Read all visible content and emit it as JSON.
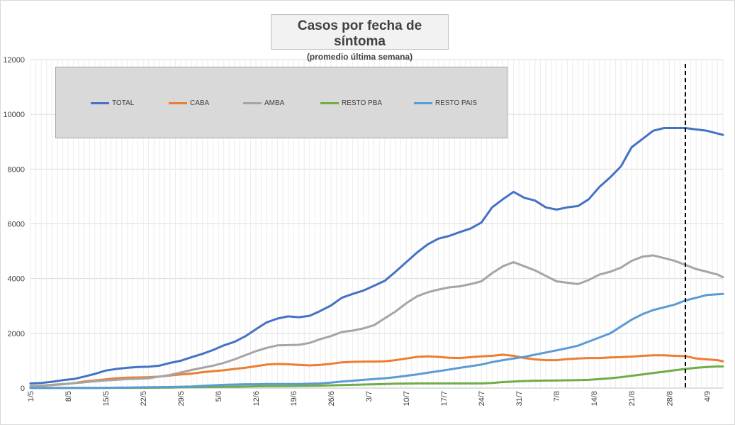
{
  "chart_data": {
    "type": "line",
    "title": "Casos por fecha de síntoma",
    "subtitle": "(promedio última semana)",
    "xlabel": "",
    "ylabel": "",
    "ylim": [
      0,
      12000
    ],
    "yticks": [
      0,
      2000,
      4000,
      6000,
      8000,
      10000,
      12000
    ],
    "grid": true,
    "legend_position": "top-left",
    "x_dates": {
      "first": "1/5",
      "last": "7/9"
    },
    "x_tick_labels": [
      "1/5",
      "8/5",
      "15/5",
      "22/5",
      "29/5",
      "5/6",
      "12/6",
      "19/6",
      "26/6",
      "3/7",
      "10/7",
      "17/7",
      "24/7",
      "31/7",
      "7/8",
      "14/8",
      "21/8",
      "28/8",
      "4/9"
    ],
    "vline": {
      "label": "",
      "x": "31/8",
      "style": "dashed"
    },
    "x": [
      "1/5",
      "3/5",
      "5/5",
      "7/5",
      "9/5",
      "11/5",
      "13/5",
      "15/5",
      "17/5",
      "19/5",
      "21/5",
      "23/5",
      "25/5",
      "27/5",
      "29/5",
      "31/5",
      "2/6",
      "4/6",
      "6/6",
      "8/6",
      "10/6",
      "12/6",
      "14/6",
      "16/6",
      "18/6",
      "20/6",
      "22/6",
      "24/6",
      "26/6",
      "28/6",
      "30/6",
      "2/7",
      "4/7",
      "6/7",
      "8/7",
      "10/7",
      "12/7",
      "14/7",
      "16/7",
      "18/7",
      "20/7",
      "22/7",
      "24/7",
      "26/7",
      "28/7",
      "30/7",
      "1/8",
      "3/8",
      "5/8",
      "7/8",
      "9/8",
      "11/8",
      "13/8",
      "15/8",
      "17/8",
      "19/8",
      "21/8",
      "23/8",
      "25/8",
      "27/8",
      "29/8",
      "31/8",
      "2/9",
      "4/9",
      "6/9",
      "7/9"
    ],
    "series": [
      {
        "name": "TOTAL",
        "color": "#4472c4",
        "values": [
          170,
          190,
          230,
          290,
          330,
          420,
          520,
          640,
          700,
          740,
          770,
          780,
          820,
          920,
          1000,
          1130,
          1250,
          1390,
          1560,
          1690,
          1890,
          2150,
          2400,
          2540,
          2620,
          2590,
          2640,
          2820,
          3020,
          3300,
          3440,
          3560,
          3740,
          3920,
          4250,
          4600,
          4950,
          5250,
          5460,
          5560,
          5700,
          5830,
          6050,
          6600,
          6900,
          7170,
          6950,
          6850,
          6600,
          6520,
          6600,
          6650,
          6900,
          7350,
          7700,
          8100,
          8800,
          9100,
          9400,
          9500,
          9500,
          9500,
          9450,
          9400,
          9300,
          9250
        ]
      },
      {
        "name": "CABA",
        "color": "#ed7d31",
        "values": [
          60,
          80,
          110,
          140,
          180,
          240,
          280,
          320,
          360,
          380,
          390,
          400,
          420,
          460,
          500,
          530,
          580,
          620,
          650,
          700,
          740,
          800,
          860,
          880,
          870,
          850,
          830,
          850,
          890,
          940,
          960,
          970,
          970,
          980,
          1020,
          1080,
          1140,
          1160,
          1140,
          1110,
          1100,
          1130,
          1160,
          1180,
          1220,
          1180,
          1100,
          1050,
          1020,
          1020,
          1060,
          1080,
          1100,
          1100,
          1120,
          1130,
          1150,
          1180,
          1200,
          1200,
          1180,
          1170,
          1080,
          1050,
          1020,
          980
        ]
      },
      {
        "name": "AMBA",
        "color": "#a5a5a5",
        "values": [
          80,
          90,
          120,
          150,
          180,
          210,
          250,
          280,
          300,
          330,
          340,
          360,
          420,
          480,
          570,
          660,
          740,
          820,
          920,
          1050,
          1200,
          1350,
          1470,
          1560,
          1570,
          1580,
          1650,
          1790,
          1900,
          2050,
          2100,
          2180,
          2300,
          2550,
          2800,
          3100,
          3350,
          3500,
          3600,
          3680,
          3720,
          3800,
          3900,
          4200,
          4450,
          4600,
          4450,
          4300,
          4100,
          3900,
          3850,
          3800,
          3950,
          4150,
          4250,
          4400,
          4650,
          4800,
          4850,
          4750,
          4650,
          4500,
          4350,
          4250,
          4150,
          4050
        ]
      },
      {
        "name": "RESTO PBA",
        "color": "#70ad47",
        "values": [
          5,
          5,
          5,
          5,
          5,
          5,
          5,
          5,
          10,
          10,
          10,
          12,
          15,
          20,
          25,
          30,
          35,
          40,
          45,
          50,
          60,
          65,
          70,
          70,
          75,
          80,
          85,
          90,
          100,
          110,
          120,
          130,
          140,
          150,
          160,
          165,
          170,
          170,
          170,
          170,
          170,
          170,
          170,
          190,
          220,
          240,
          260,
          270,
          275,
          280,
          285,
          290,
          300,
          330,
          360,
          400,
          450,
          500,
          550,
          600,
          650,
          700,
          740,
          770,
          790,
          790
        ]
      },
      {
        "name": "RESTO PAIS",
        "color": "#5b9bd5",
        "values": [
          5,
          5,
          5,
          5,
          5,
          5,
          5,
          10,
          15,
          20,
          25,
          30,
          35,
          40,
          50,
          60,
          80,
          100,
          120,
          130,
          140,
          140,
          150,
          150,
          150,
          150,
          160,
          170,
          200,
          240,
          270,
          300,
          330,
          360,
          400,
          450,
          500,
          560,
          620,
          680,
          740,
          800,
          860,
          950,
          1020,
          1080,
          1140,
          1220,
          1300,
          1380,
          1460,
          1550,
          1700,
          1850,
          2000,
          2250,
          2500,
          2700,
          2850,
          2950,
          3050,
          3200,
          3300,
          3400,
          3430,
          3440
        ]
      }
    ]
  }
}
